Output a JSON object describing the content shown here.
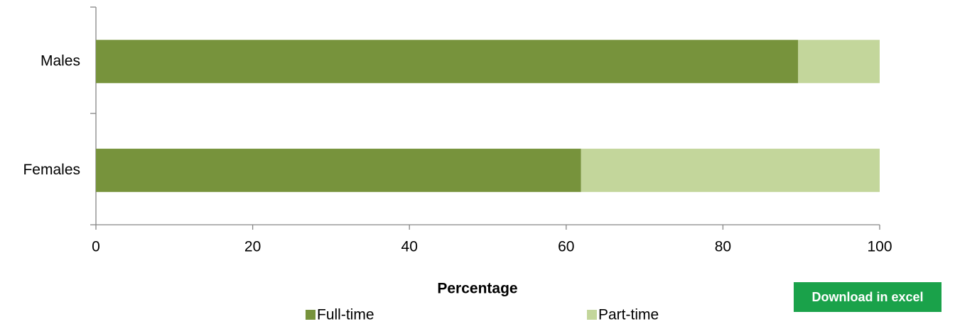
{
  "chart_data": {
    "type": "stacked-bar-horizontal",
    "categories": [
      "Males",
      "Females"
    ],
    "series": [
      {
        "name": "Full-time",
        "color": "#77933c",
        "values": [
          89.6,
          61.9
        ]
      },
      {
        "name": "Part-time",
        "color": "#c3d69b",
        "values": [
          10.4,
          38.1
        ]
      }
    ],
    "xlabel": "Percentage",
    "xlim": [
      0,
      100
    ],
    "xticks": [
      0,
      20,
      40,
      60,
      80,
      100
    ],
    "grid": false,
    "legend": "bottom"
  },
  "download_button": "Download in excel"
}
